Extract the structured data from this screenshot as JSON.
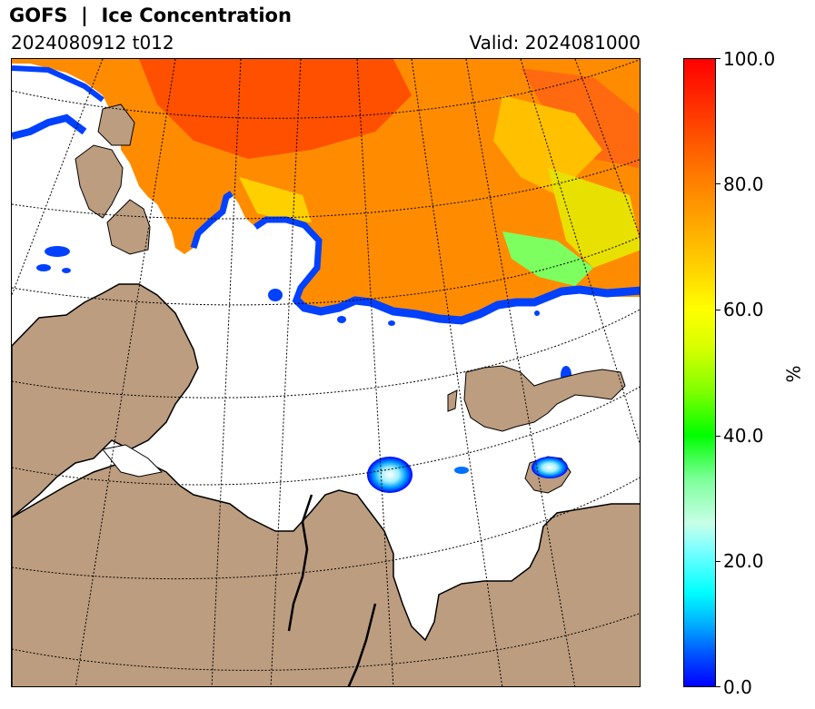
{
  "header": {
    "title": "GOFS  |  Ice Concentration",
    "run": "2024080912 t012",
    "valid": "Valid: 2024081000"
  },
  "colorbar": {
    "unit": "%",
    "min": 0.0,
    "max": 100.0,
    "ticks": [
      "0.0",
      "20.0",
      "40.0",
      "60.0",
      "80.0",
      "100.0"
    ],
    "colors": [
      "#0000ff",
      "#00ffff",
      "#00ff00",
      "#ffff00",
      "#ff8c00",
      "#ff0000"
    ]
  },
  "map": {
    "land_color": "#bc9d7f",
    "ocean_color": "#ffffff",
    "coastline_color": "#000000",
    "gridline_style": "dotted"
  }
}
